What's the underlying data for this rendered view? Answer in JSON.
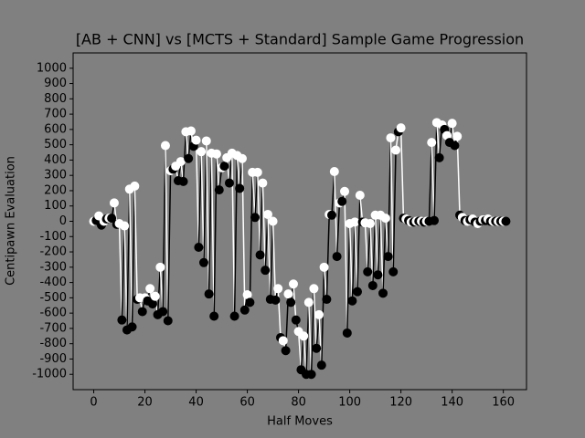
{
  "chart_data": {
    "type": "line",
    "title": "[AB + CNN] vs [MCTS + Standard] Sample Game Progression",
    "xlabel": "Half Moves",
    "ylabel": "Centipawn Evaluation",
    "xlim": [
      -8.05,
      169.05
    ],
    "xticks": [
      0,
      20,
      40,
      60,
      80,
      100,
      120,
      140,
      160
    ],
    "ylim": [
      -1100,
      1100
    ],
    "yticks": [
      -1000,
      -900,
      -800,
      -700,
      -600,
      -500,
      -400,
      -300,
      -200,
      -100,
      0,
      100,
      200,
      300,
      400,
      500,
      600,
      700,
      800,
      900,
      1000
    ],
    "colors": [
      "#ffffff",
      "#000000"
    ],
    "background": "#808080",
    "x": [
      0,
      1,
      2,
      3,
      4,
      5,
      6,
      7,
      8,
      9,
      10,
      11,
      12,
      13,
      14,
      15,
      16,
      17,
      18,
      19,
      20,
      21,
      22,
      23,
      24,
      25,
      26,
      27,
      28,
      29,
      30,
      31,
      32,
      33,
      34,
      35,
      36,
      37,
      38,
      39,
      40,
      41,
      42,
      43,
      44,
      45,
      46,
      47,
      48,
      49,
      50,
      51,
      52,
      53,
      54,
      55,
      56,
      57,
      58,
      59,
      60,
      61,
      62,
      63,
      64,
      65,
      66,
      67,
      68,
      69,
      70,
      71,
      72,
      73,
      74,
      75,
      76,
      77,
      78,
      79,
      80,
      81,
      82,
      83,
      84,
      85,
      86,
      87,
      88,
      89,
      90,
      91,
      92,
      93,
      94,
      95,
      96,
      97,
      98,
      99,
      100,
      101,
      102,
      103,
      104,
      105,
      106,
      107,
      108,
      109,
      110,
      111,
      112,
      113,
      114,
      115,
      116,
      117,
      118,
      119,
      120,
      121,
      122,
      123,
      124,
      125,
      126,
      127,
      128,
      129,
      130,
      131,
      132,
      133,
      134,
      135,
      136,
      137,
      138,
      139,
      140,
      141,
      142,
      143,
      144,
      145,
      146,
      147,
      148,
      149,
      150,
      151,
      152,
      153,
      154,
      155,
      156,
      157,
      158,
      159,
      160,
      161
    ],
    "values": [
      0,
      5,
      35,
      -25,
      0,
      15,
      20,
      20,
      120,
      -20,
      -15,
      -645,
      -30,
      -710,
      210,
      -690,
      230,
      -510,
      -500,
      -590,
      -500,
      -520,
      -440,
      -540,
      -490,
      -610,
      -300,
      -590,
      495,
      -650,
      330,
      340,
      360,
      265,
      390,
      260,
      585,
      410,
      590,
      490,
      530,
      -170,
      455,
      -270,
      525,
      -475,
      445,
      -620,
      440,
      205,
      350,
      360,
      415,
      250,
      445,
      -620,
      430,
      215,
      410,
      -580,
      -480,
      -530,
      320,
      25,
      320,
      -220,
      250,
      -320,
      45,
      -510,
      0,
      -515,
      -440,
      -760,
      -780,
      -845,
      -475,
      -530,
      -410,
      -645,
      -720,
      -970,
      -750,
      -1000,
      -530,
      -1000,
      -440,
      -830,
      -610,
      -940,
      -300,
      -510,
      45,
      40,
      325,
      -230,
      120,
      130,
      195,
      -730,
      -15,
      -520,
      -5,
      -460,
      170,
      -5,
      -10,
      -330,
      -15,
      -420,
      40,
      -350,
      40,
      -470,
      20,
      -230,
      545,
      -330,
      465,
      585,
      610,
      20,
      15,
      5,
      -5,
      -5,
      0,
      0,
      0,
      -5,
      0,
      0,
      515,
      5,
      645,
      415,
      630,
      600,
      560,
      515,
      640,
      495,
      555,
      40,
      25,
      5,
      0,
      10,
      15,
      -5,
      -15,
      0,
      10,
      5,
      15,
      0,
      0,
      0,
      0,
      0,
      0,
      0
    ]
  }
}
